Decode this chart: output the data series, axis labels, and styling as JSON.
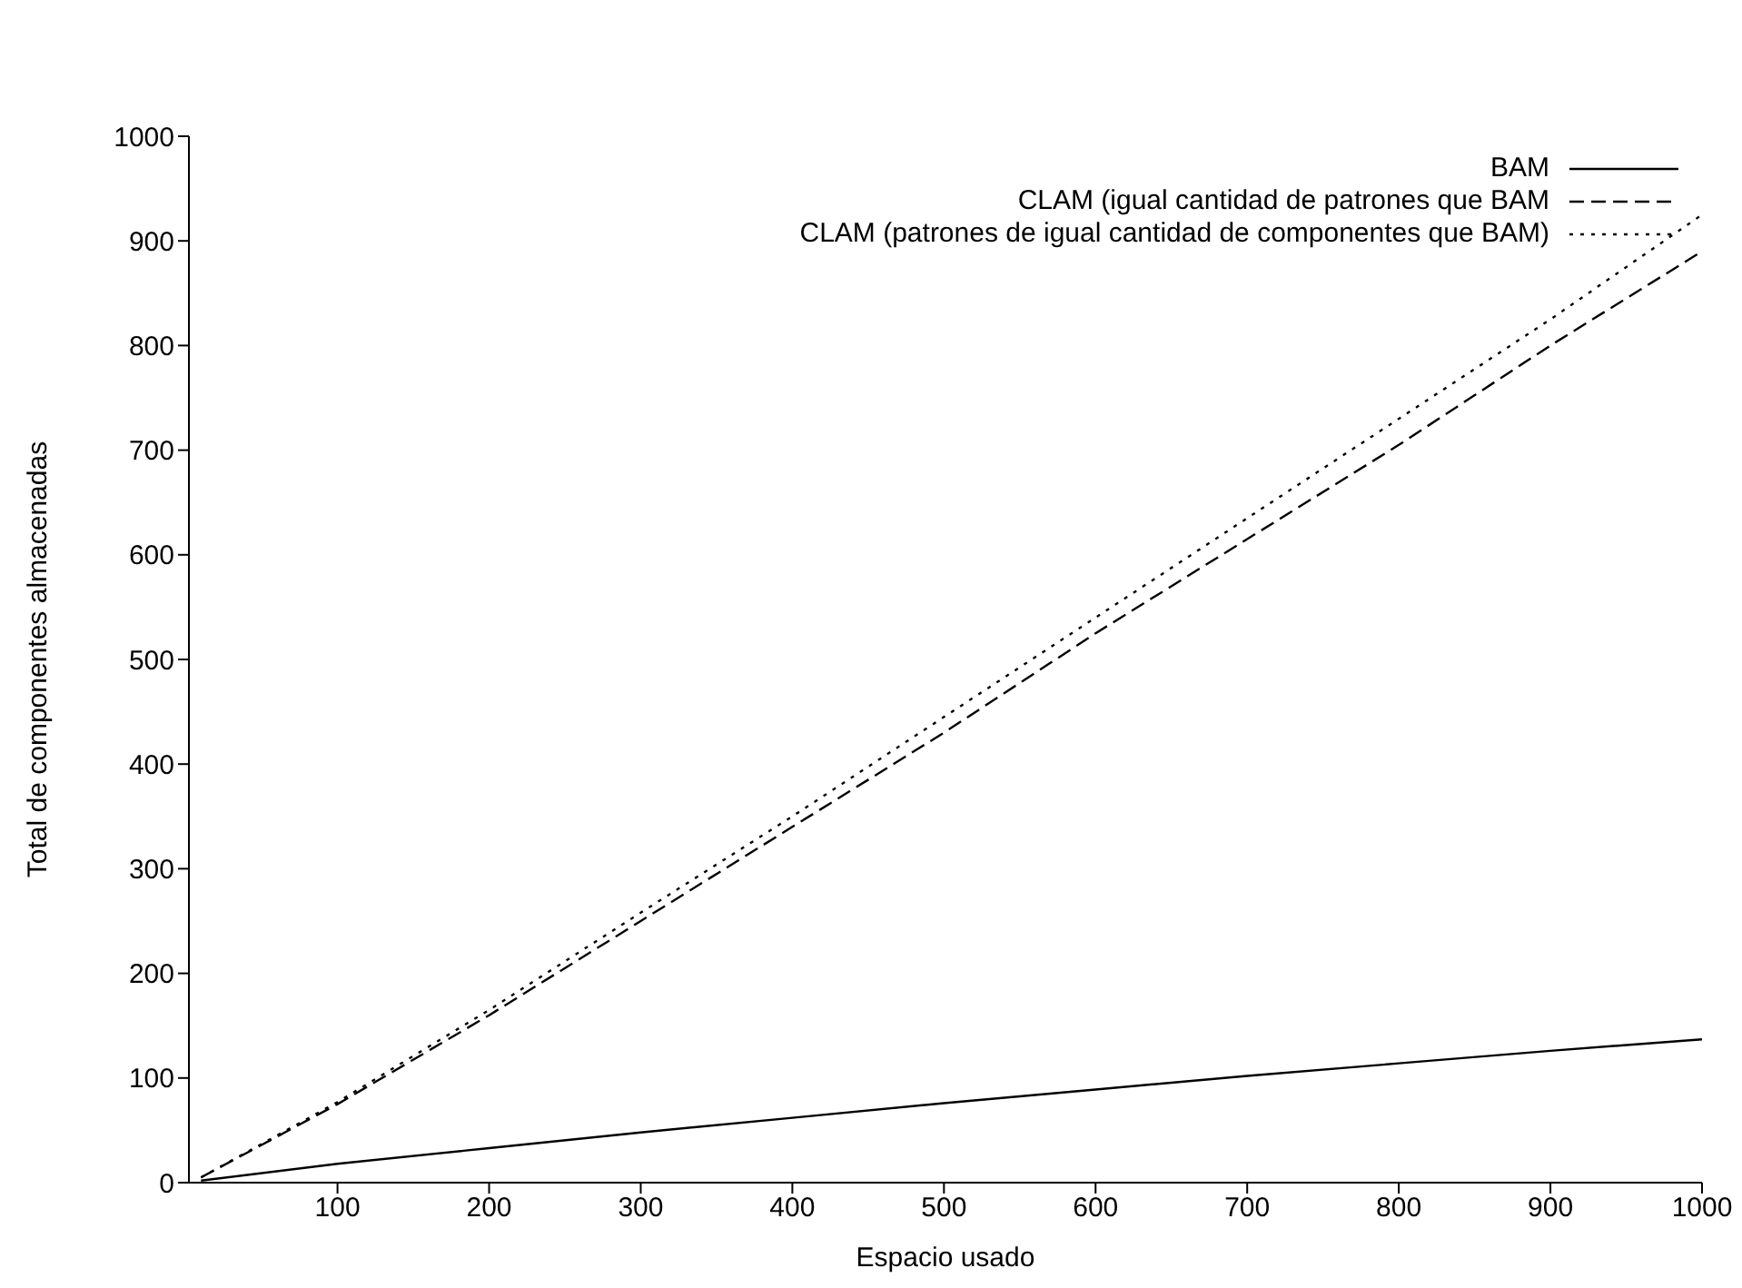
{
  "chart_data": {
    "type": "line",
    "xlabel": "Espacio usado",
    "ylabel": "Total de componentes almacenadas",
    "x": [
      10,
      100,
      200,
      300,
      400,
      500,
      600,
      700,
      800,
      900,
      1000
    ],
    "series": [
      {
        "name": "BAM",
        "color": "#000000",
        "line_style": "solid",
        "values": [
          2,
          18,
          33,
          48,
          62,
          76,
          89,
          102,
          114,
          126,
          137
        ]
      },
      {
        "name": "CLAM (igual cantidad de patrones que BAM",
        "color": "#000000",
        "line_style": "dashed",
        "values": [
          5,
          75,
          160,
          250,
          340,
          430,
          525,
          615,
          705,
          800,
          890
        ]
      },
      {
        "name": "CLAM (patrones de igual cantidad de componentes que BAM)",
        "color": "#000000",
        "line_style": "dotted",
        "values": [
          5,
          77,
          165,
          258,
          350,
          445,
          540,
          635,
          730,
          825,
          925
        ]
      }
    ],
    "xlim": [
      2,
      1000
    ],
    "xticks": [
      100,
      200,
      300,
      400,
      500,
      600,
      700,
      800,
      900,
      1000
    ],
    "ylim": [
      0,
      1000
    ],
    "yticks": [
      0,
      100,
      200,
      300,
      400,
      500,
      600,
      700,
      800,
      900,
      1000
    ],
    "grid": false,
    "legend": "top right",
    "marker": "none"
  }
}
